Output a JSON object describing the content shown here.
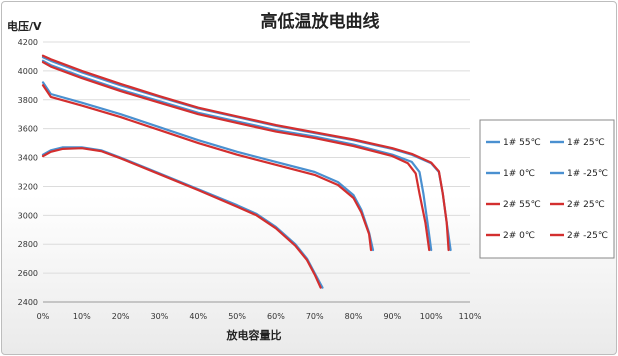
{
  "chart_data": {
    "type": "line",
    "title": "高低温放电曲线",
    "xlabel": "放电容量比",
    "ylabel": "电压/V",
    "xlim": [
      0,
      110
    ],
    "ylim": [
      2400,
      4200
    ],
    "x_tick_labels": [
      "0%",
      "10%",
      "20%",
      "30%",
      "40%",
      "50%",
      "60%",
      "70%",
      "80%",
      "90%",
      "100%",
      "110%"
    ],
    "y_tick_labels": [
      "2400",
      "2600",
      "2800",
      "3000",
      "3200",
      "3400",
      "3600",
      "3800",
      "4000",
      "4200"
    ],
    "grid": "horizontal",
    "legend_position": "right",
    "colors": {
      "blue": "#4a90d0",
      "red": "#d32f2f"
    },
    "series": [
      {
        "name": "1# 55℃",
        "color": "#4a90d0",
        "points": [
          [
            0,
            4095
          ],
          [
            2,
            4070
          ],
          [
            10,
            3990
          ],
          [
            20,
            3900
          ],
          [
            30,
            3820
          ],
          [
            40,
            3740
          ],
          [
            50,
            3680
          ],
          [
            60,
            3620
          ],
          [
            70,
            3570
          ],
          [
            80,
            3520
          ],
          [
            90,
            3460
          ],
          [
            95,
            3420
          ],
          [
            100,
            3360
          ],
          [
            102,
            3300
          ],
          [
            103,
            3150
          ],
          [
            104,
            2950
          ],
          [
            105,
            2760
          ]
        ]
      },
      {
        "name": "1# 25℃",
        "color": "#4a90d0",
        "points": [
          [
            0,
            4070
          ],
          [
            2,
            4040
          ],
          [
            10,
            3960
          ],
          [
            20,
            3870
          ],
          [
            30,
            3790
          ],
          [
            40,
            3710
          ],
          [
            50,
            3650
          ],
          [
            60,
            3590
          ],
          [
            70,
            3545
          ],
          [
            80,
            3490
          ],
          [
            90,
            3420
          ],
          [
            95,
            3370
          ],
          [
            97,
            3300
          ],
          [
            98,
            3150
          ],
          [
            99,
            2960
          ],
          [
            100,
            2760
          ]
        ]
      },
      {
        "name": "1# 0℃",
        "color": "#4a90d0",
        "points": [
          [
            0,
            3920
          ],
          [
            2,
            3840
          ],
          [
            10,
            3780
          ],
          [
            20,
            3700
          ],
          [
            30,
            3610
          ],
          [
            40,
            3520
          ],
          [
            50,
            3440
          ],
          [
            60,
            3370
          ],
          [
            70,
            3300
          ],
          [
            76,
            3230
          ],
          [
            80,
            3140
          ],
          [
            82,
            3040
          ],
          [
            84,
            2880
          ],
          [
            85,
            2760
          ]
        ]
      },
      {
        "name": "1# -25℃",
        "color": "#4a90d0",
        "points": [
          [
            0,
            3420
          ],
          [
            2,
            3450
          ],
          [
            5,
            3470
          ],
          [
            10,
            3470
          ],
          [
            15,
            3450
          ],
          [
            20,
            3400
          ],
          [
            30,
            3290
          ],
          [
            40,
            3180
          ],
          [
            50,
            3070
          ],
          [
            55,
            3010
          ],
          [
            60,
            2920
          ],
          [
            65,
            2800
          ],
          [
            68,
            2700
          ],
          [
            70,
            2600
          ],
          [
            72,
            2500
          ]
        ]
      },
      {
        "name": "2# 55℃",
        "color": "#d32f2f",
        "points": [
          [
            0,
            4105
          ],
          [
            2,
            4080
          ],
          [
            10,
            4000
          ],
          [
            20,
            3910
          ],
          [
            30,
            3825
          ],
          [
            40,
            3745
          ],
          [
            50,
            3685
          ],
          [
            60,
            3625
          ],
          [
            70,
            3575
          ],
          [
            80,
            3525
          ],
          [
            90,
            3465
          ],
          [
            95,
            3425
          ],
          [
            100,
            3365
          ],
          [
            102,
            3305
          ],
          [
            103,
            3150
          ],
          [
            104,
            2950
          ],
          [
            104.5,
            2760
          ]
        ]
      },
      {
        "name": "2# 25℃",
        "color": "#d32f2f",
        "points": [
          [
            0,
            4060
          ],
          [
            2,
            4030
          ],
          [
            10,
            3950
          ],
          [
            20,
            3860
          ],
          [
            30,
            3780
          ],
          [
            40,
            3700
          ],
          [
            50,
            3640
          ],
          [
            60,
            3580
          ],
          [
            70,
            3535
          ],
          [
            80,
            3480
          ],
          [
            90,
            3410
          ],
          [
            94,
            3360
          ],
          [
            96,
            3290
          ],
          [
            97,
            3150
          ],
          [
            98.5,
            2950
          ],
          [
            99.5,
            2760
          ]
        ]
      },
      {
        "name": "2# 0℃",
        "color": "#d32f2f",
        "points": [
          [
            0,
            3900
          ],
          [
            2,
            3820
          ],
          [
            10,
            3760
          ],
          [
            20,
            3680
          ],
          [
            30,
            3590
          ],
          [
            40,
            3500
          ],
          [
            50,
            3420
          ],
          [
            60,
            3350
          ],
          [
            70,
            3280
          ],
          [
            76,
            3210
          ],
          [
            80,
            3120
          ],
          [
            82,
            3020
          ],
          [
            84,
            2870
          ],
          [
            84.5,
            2760
          ]
        ]
      },
      {
        "name": "2# -25℃",
        "color": "#d32f2f",
        "points": [
          [
            0,
            3410
          ],
          [
            2,
            3440
          ],
          [
            5,
            3460
          ],
          [
            10,
            3465
          ],
          [
            15,
            3445
          ],
          [
            20,
            3395
          ],
          [
            30,
            3285
          ],
          [
            40,
            3175
          ],
          [
            50,
            3060
          ],
          [
            55,
            3000
          ],
          [
            60,
            2910
          ],
          [
            65,
            2790
          ],
          [
            68,
            2690
          ],
          [
            70,
            2590
          ],
          [
            71.5,
            2500
          ]
        ]
      }
    ]
  }
}
